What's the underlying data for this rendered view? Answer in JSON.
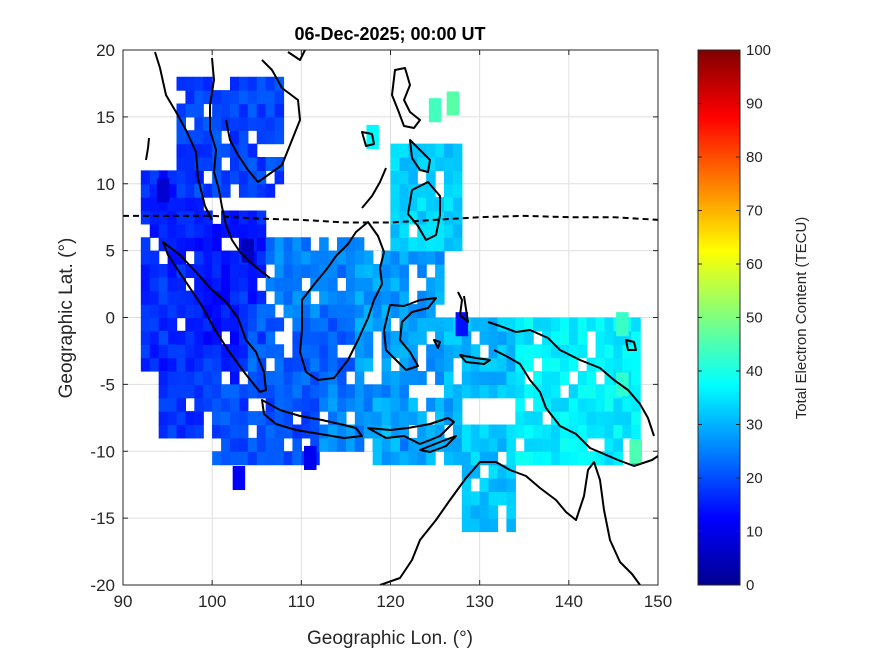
{
  "chart_data": {
    "type": "heatmap",
    "title": "06-Dec-2025; 00:00 UT",
    "xlabel": "Geographic Lon. (°)",
    "ylabel": "Geographic Lat. (°)",
    "xlim": [
      90,
      150
    ],
    "ylim": [
      -20,
      20
    ],
    "xticks": [
      "90",
      "100",
      "110",
      "120",
      "130",
      "140",
      "150"
    ],
    "yticks": [
      "-20",
      "-15",
      "-10",
      "-5",
      "0",
      "5",
      "10",
      "15",
      "20"
    ],
    "grid": true,
    "colorbar": {
      "label": "Total Electron Content (TECU)",
      "range": [
        0,
        100
      ],
      "ticks": [
        "0",
        "10",
        "20",
        "30",
        "40",
        "50",
        "60",
        "70",
        "80",
        "90",
        "100"
      ],
      "colormap": "jet"
    },
    "magnetic_equator": [
      [
        90,
        7.6
      ],
      [
        100,
        7.6
      ],
      [
        105,
        7.4
      ],
      [
        110,
        7.3
      ],
      [
        115,
        7.1
      ],
      [
        120,
        7.1
      ],
      [
        125,
        7.3
      ],
      [
        130,
        7.5
      ],
      [
        135,
        7.6
      ],
      [
        140,
        7.5
      ],
      [
        145,
        7.5
      ],
      [
        150,
        7.3
      ]
    ],
    "tec_regions": [
      {
        "lon": [
          92,
          99
        ],
        "lat": [
          -4,
          10.5
        ],
        "tec": 16
      },
      {
        "lon": [
          94,
          104
        ],
        "lat": [
          -9,
          3
        ],
        "tec": 17
      },
      {
        "lon": [
          98,
          106
        ],
        "lat": [
          -3,
          8
        ],
        "tec": 15
      },
      {
        "lon": [
          100,
          112
        ],
        "lat": [
          -11,
          -5
        ],
        "tec": 20
      },
      {
        "lon": [
          104,
          116
        ],
        "lat": [
          -6,
          1
        ],
        "tec": 22
      },
      {
        "lon": [
          106,
          118
        ],
        "lat": [
          0,
          6
        ],
        "tec": 25
      },
      {
        "lon": [
          112,
          122
        ],
        "lat": [
          -10,
          -5
        ],
        "tec": 26
      },
      {
        "lon": [
          116,
          126
        ],
        "lat": [
          -5,
          5
        ],
        "tec": 28
      },
      {
        "lon": [
          118,
          128
        ],
        "lat": [
          -11,
          -6
        ],
        "tec": 29
      },
      {
        "lon": [
          120,
          128
        ],
        "lat": [
          5,
          13
        ],
        "tec": 33
      },
      {
        "lon": [
          126,
          134
        ],
        "lat": [
          -6,
          0
        ],
        "tec": 31
      },
      {
        "lon": [
          128,
          134
        ],
        "lat": [
          -16,
          -8
        ],
        "tec": 32
      },
      {
        "lon": [
          134,
          148
        ],
        "lat": [
          -11,
          0
        ],
        "tec": 36
      },
      {
        "lon": [
          96,
          108
        ],
        "lat": [
          9,
          18
        ],
        "tec": 19
      }
    ],
    "tec_spots": [
      {
        "lon": 94.5,
        "lat": 9.5,
        "tec": 8
      },
      {
        "lon": 104,
        "lat": 5,
        "tec": 6
      },
      {
        "lon": 103,
        "lat": -12,
        "tec": 12
      },
      {
        "lon": 111,
        "lat": -10.5,
        "tec": 11
      },
      {
        "lon": 128,
        "lat": -0.5,
        "tec": 14
      },
      {
        "lon": 146,
        "lat": -0.5,
        "tec": 43
      },
      {
        "lon": 147.5,
        "lat": -10,
        "tec": 45
      },
      {
        "lon": 125,
        "lat": 15.5,
        "tec": 44
      },
      {
        "lon": 127,
        "lat": 16,
        "tec": 46
      },
      {
        "lon": 118,
        "lat": 13.5,
        "tec": 37
      },
      {
        "lon": 146,
        "lat": -5,
        "tec": 42
      }
    ]
  }
}
